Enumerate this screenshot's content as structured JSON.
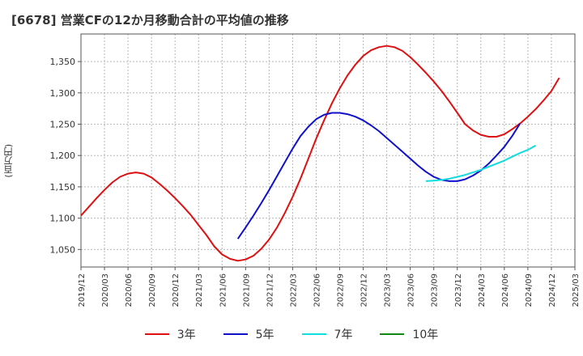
{
  "title": "[6678]  営業CFの12か月移動合計の平均値の推移",
  "y_unit_label": "(百万円)",
  "chart_data": {
    "type": "line",
    "ylim": [
      1022,
      1394
    ],
    "yticks": [
      1050,
      1100,
      1150,
      1200,
      1250,
      1300,
      1350
    ],
    "ytick_labels": [
      "1,050",
      "1,100",
      "1,150",
      "1,200",
      "1,250",
      "1,300",
      "1,350"
    ],
    "xticks": [
      "2019/12",
      "2020/03",
      "2020/06",
      "2020/09",
      "2020/12",
      "2021/03",
      "2021/06",
      "2021/09",
      "2021/12",
      "2022/03",
      "2022/06",
      "2022/09",
      "2022/12",
      "2023/03",
      "2023/06",
      "2023/09",
      "2023/12",
      "2024/03",
      "2024/06",
      "2024/09",
      "2024/12",
      "2025/03"
    ],
    "grid": true,
    "legend_position": "bottom",
    "series": [
      {
        "name": "3年",
        "color": "#dd1111",
        "start": "2019/12",
        "values": [
          1104,
          1118,
          1132,
          1145,
          1157,
          1166,
          1171,
          1173,
          1171,
          1165,
          1155,
          1144,
          1132,
          1119,
          1105,
          1089,
          1073,
          1055,
          1042,
          1035,
          1032,
          1034,
          1040,
          1051,
          1066,
          1085,
          1108,
          1134,
          1163,
          1195,
          1227,
          1256,
          1283,
          1307,
          1328,
          1345,
          1359,
          1368,
          1373,
          1375,
          1373,
          1367,
          1357,
          1345,
          1332,
          1318,
          1303,
          1286,
          1268,
          1250,
          1240,
          1233,
          1230,
          1230,
          1234,
          1242,
          1251,
          1262,
          1274,
          1288,
          1303,
          1324
        ]
      },
      {
        "name": "5年",
        "color": "#1111cc",
        "start": "2021/08",
        "values": [
          1067,
          1085,
          1104,
          1124,
          1145,
          1167,
          1189,
          1211,
          1231,
          1246,
          1258,
          1265,
          1268,
          1268,
          1266,
          1262,
          1256,
          1248,
          1239,
          1228,
          1217,
          1206,
          1195,
          1184,
          1174,
          1166,
          1161,
          1159,
          1159,
          1162,
          1168,
          1176,
          1187,
          1200,
          1214,
          1231,
          1251
        ]
      },
      {
        "name": "7年",
        "color": "#11dddd",
        "start": "2023/08",
        "values": [
          1159,
          1160,
          1161,
          1163,
          1166,
          1169,
          1173,
          1177,
          1182,
          1187,
          1192,
          1198,
          1204,
          1209,
          1216
        ]
      },
      {
        "name": "10年",
        "color": "#118811",
        "start": "2024/09",
        "values": []
      }
    ]
  }
}
